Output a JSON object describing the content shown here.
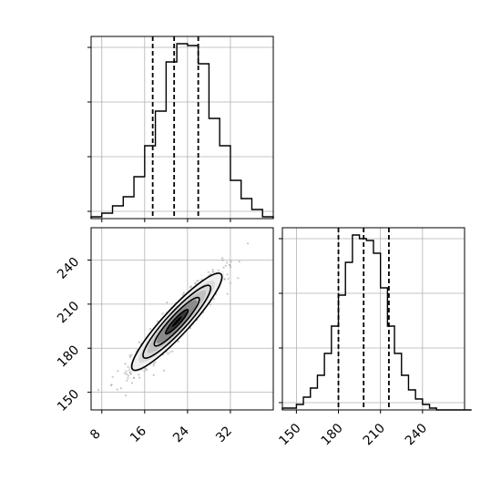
{
  "chart_data": [
    {
      "type": "histogram",
      "panel": "top-left",
      "variable": "x",
      "bin_edges": [
        6,
        8,
        10,
        12,
        14,
        16,
        18,
        20,
        22,
        24,
        26,
        28,
        30,
        32,
        34,
        36,
        38,
        40
      ],
      "counts": [
        0.01,
        0.03,
        0.07,
        0.12,
        0.23,
        0.4,
        0.59,
        0.86,
        0.96,
        0.95,
        0.85,
        0.55,
        0.4,
        0.21,
        0.11,
        0.05,
        0.01
      ],
      "ylim": [
        0,
        1
      ],
      "quantiles": [
        17.5,
        21.5,
        26.0
      ],
      "xlim": [
        6,
        40
      ],
      "grid": true,
      "tick_labels_shown": false
    },
    {
      "type": "histogram",
      "panel": "bottom-right",
      "variable": "y",
      "bin_edges": [
        140,
        145,
        150,
        155,
        160,
        165,
        170,
        175,
        180,
        185,
        190,
        195,
        200,
        205,
        210,
        215,
        220,
        225,
        230,
        235,
        240,
        245,
        250,
        255,
        260,
        265,
        270,
        275
      ],
      "counts": [
        0.01,
        0.01,
        0.03,
        0.07,
        0.12,
        0.19,
        0.31,
        0.46,
        0.63,
        0.81,
        0.96,
        0.94,
        0.93,
        0.86,
        0.67,
        0.46,
        0.31,
        0.19,
        0.11,
        0.06,
        0.03,
        0.01,
        0.0,
        0.0,
        0.0,
        0.0,
        0.0
      ],
      "ylim": [
        0,
        1
      ],
      "quantiles": [
        180,
        198,
        216
      ],
      "xlim": [
        140,
        270
      ],
      "xticks": [
        150,
        180,
        210,
        240
      ],
      "grid": true
    },
    {
      "type": "scatter-density",
      "panel": "bottom-left",
      "x_variable": "x",
      "y_variable": "y",
      "xlim": [
        6,
        40
      ],
      "ylim": [
        138,
        262
      ],
      "xticks": [
        8,
        16,
        24,
        32
      ],
      "yticks": [
        150,
        180,
        210,
        240
      ],
      "center": [
        22,
        198
      ],
      "x_sd": 4.2,
      "y_sd": 16.5,
      "correlation": 0.93,
      "contour_sigmas": [
        0.5,
        1.0,
        1.5,
        2.0
      ],
      "grid": true
    }
  ]
}
